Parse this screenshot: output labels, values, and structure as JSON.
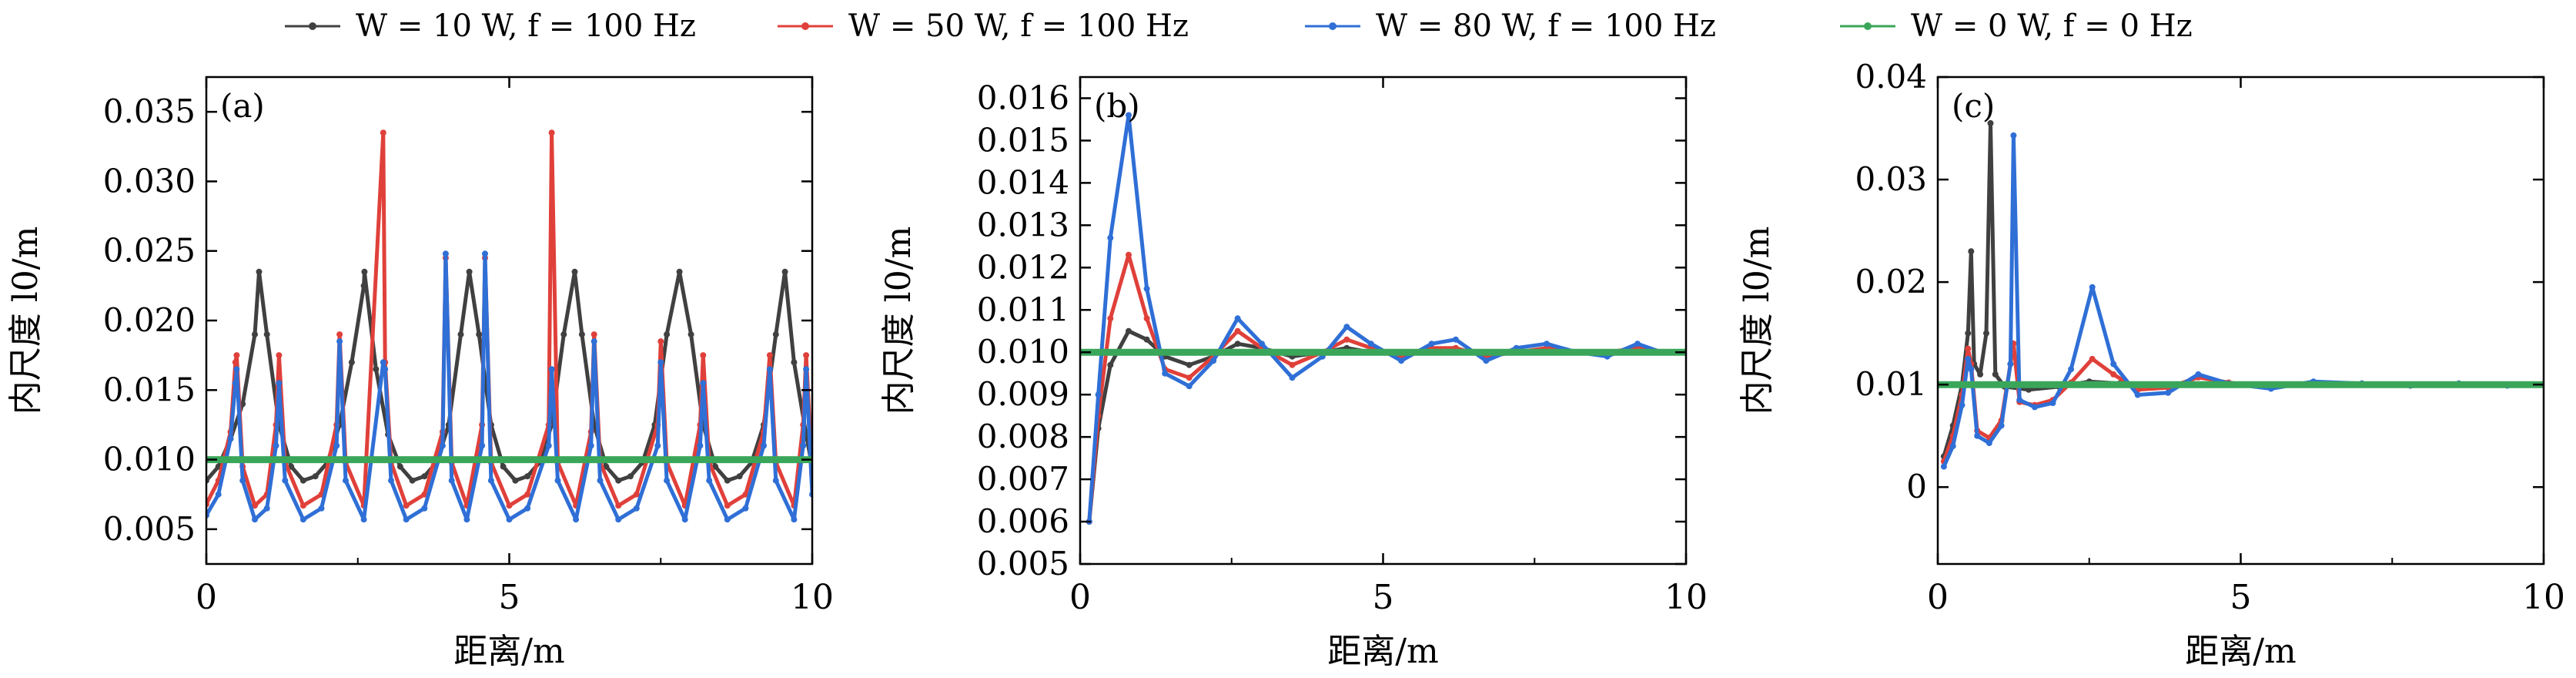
{
  "legend": {
    "placement": "top-center",
    "entries": [
      {
        "label": "W = 10 W, f = 100 Hz",
        "color": "#404040"
      },
      {
        "label": "W = 50 W, f = 100 Hz",
        "color": "#e0403a"
      },
      {
        "label": "W = 80 W, f = 100 Hz",
        "color": "#2f6fd6"
      },
      {
        "label": "W = 0 W, f = 0 Hz",
        "color": "#3aa65a"
      }
    ]
  },
  "chart_data": [
    {
      "type": "line",
      "panel_label": "(a)",
      "xlabel": "距离/m",
      "ylabel": "内尺度 l0/m",
      "xlim": [
        0,
        10
      ],
      "ylim": [
        0.0025,
        0.0375
      ],
      "xticks": [
        "0",
        "5",
        "10"
      ],
      "yticks": [
        "0.005",
        "0.010",
        "0.015",
        "0.020",
        "0.025",
        "0.030",
        "0.035"
      ],
      "grid": false,
      "series": [
        {
          "name": "W = 10 W, f = 100 Hz",
          "color": "#404040",
          "x": [
            0,
            0.2,
            0.4,
            0.6,
            0.8,
            0.87,
            1.0,
            1.2,
            1.4,
            1.6,
            1.8,
            2.0,
            2.2,
            2.4,
            2.6,
            2.61,
            2.8,
            3.0,
            3.2,
            3.4,
            3.6,
            3.8,
            4.0,
            4.2,
            4.34,
            4.5,
            4.7,
            4.9,
            5.1,
            5.3,
            5.5,
            5.7,
            5.9,
            6.08,
            6.2,
            6.4,
            6.6,
            6.8,
            7.0,
            7.2,
            7.4,
            7.6,
            7.81,
            8.0,
            8.2,
            8.4,
            8.6,
            8.8,
            9.0,
            9.2,
            9.4,
            9.55,
            9.7,
            9.9,
            10.0
          ],
          "y": [
            0.0085,
            0.0095,
            0.0115,
            0.014,
            0.019,
            0.0235,
            0.019,
            0.0125,
            0.0095,
            0.0085,
            0.0088,
            0.0098,
            0.0125,
            0.017,
            0.0225,
            0.0235,
            0.0165,
            0.0118,
            0.0095,
            0.0085,
            0.0088,
            0.0098,
            0.0125,
            0.019,
            0.0235,
            0.019,
            0.0125,
            0.0095,
            0.0085,
            0.0088,
            0.0098,
            0.0125,
            0.019,
            0.0235,
            0.019,
            0.0125,
            0.0095,
            0.0085,
            0.0088,
            0.0098,
            0.0125,
            0.019,
            0.0235,
            0.019,
            0.0125,
            0.0095,
            0.0085,
            0.0088,
            0.0098,
            0.0125,
            0.019,
            0.0235,
            0.017,
            0.0118,
            0.0095
          ]
        },
        {
          "name": "W = 50 W, f = 100 Hz",
          "color": "#e0403a",
          "x": [
            0,
            0.2,
            0.4,
            0.48,
            0.5,
            0.6,
            0.8,
            1.0,
            1.15,
            1.2,
            1.3,
            1.6,
            1.9,
            2.15,
            2.2,
            2.3,
            2.6,
            2.92,
            2.95,
            3.05,
            3.3,
            3.6,
            3.9,
            3.95,
            4.05,
            4.3,
            4.55,
            4.6,
            4.7,
            5.0,
            5.3,
            5.65,
            5.7,
            5.8,
            6.1,
            6.35,
            6.4,
            6.5,
            6.8,
            7.1,
            7.45,
            7.5,
            7.6,
            7.9,
            8.15,
            8.2,
            8.3,
            8.6,
            8.9,
            9.2,
            9.3,
            9.4,
            9.7,
            9.85,
            9.9,
            10.0
          ],
          "y": [
            0.0068,
            0.0085,
            0.012,
            0.017,
            0.0175,
            0.0095,
            0.0067,
            0.0075,
            0.0125,
            0.0175,
            0.0098,
            0.0067,
            0.0075,
            0.0125,
            0.019,
            0.0098,
            0.0067,
            0.0335,
            0.017,
            0.0098,
            0.0067,
            0.0075,
            0.012,
            0.0245,
            0.0098,
            0.0067,
            0.0125,
            0.0245,
            0.0098,
            0.0067,
            0.0075,
            0.0125,
            0.0335,
            0.0098,
            0.0067,
            0.012,
            0.019,
            0.0098,
            0.0067,
            0.0075,
            0.0125,
            0.0185,
            0.0098,
            0.0067,
            0.0125,
            0.0175,
            0.0098,
            0.0067,
            0.0075,
            0.012,
            0.0175,
            0.0098,
            0.0067,
            0.0125,
            0.0175,
            0.009
          ]
        },
        {
          "name": "W = 80 W, f = 100 Hz",
          "color": "#2f6fd6",
          "x": [
            0,
            0.2,
            0.4,
            0.48,
            0.5,
            0.6,
            0.8,
            1.0,
            1.15,
            1.2,
            1.3,
            1.6,
            1.9,
            2.15,
            2.2,
            2.3,
            2.6,
            2.92,
            2.95,
            3.05,
            3.3,
            3.6,
            3.9,
            3.95,
            4.05,
            4.3,
            4.55,
            4.6,
            4.7,
            5.0,
            5.3,
            5.65,
            5.7,
            5.8,
            6.1,
            6.35,
            6.4,
            6.5,
            6.8,
            7.1,
            7.45,
            7.5,
            7.6,
            7.9,
            8.15,
            8.2,
            8.3,
            8.6,
            8.9,
            9.2,
            9.3,
            9.4,
            9.7,
            9.85,
            9.9,
            10.0
          ],
          "y": [
            0.006,
            0.0075,
            0.0115,
            0.0155,
            0.0165,
            0.0085,
            0.0057,
            0.0065,
            0.011,
            0.0155,
            0.0085,
            0.0057,
            0.0065,
            0.011,
            0.0185,
            0.0085,
            0.0057,
            0.017,
            0.0165,
            0.0085,
            0.0057,
            0.0065,
            0.011,
            0.0248,
            0.0085,
            0.0057,
            0.011,
            0.0248,
            0.0085,
            0.0057,
            0.0065,
            0.011,
            0.0165,
            0.0085,
            0.0057,
            0.011,
            0.0185,
            0.0085,
            0.0057,
            0.0065,
            0.011,
            0.017,
            0.0085,
            0.0057,
            0.011,
            0.0155,
            0.0085,
            0.0057,
            0.0065,
            0.011,
            0.0165,
            0.0085,
            0.0057,
            0.011,
            0.0165,
            0.0075
          ]
        },
        {
          "name": "W = 0 W, f = 0 Hz",
          "color": "#3aa65a",
          "x": [
            0,
            10
          ],
          "y": [
            0.01,
            0.01
          ]
        }
      ]
    },
    {
      "type": "line",
      "panel_label": "(b)",
      "xlabel": "距离/m",
      "ylabel": "内尺度 l0/m",
      "xlim": [
        0,
        10
      ],
      "ylim": [
        0.005,
        0.0165
      ],
      "xticks": [
        "0",
        "5",
        "10"
      ],
      "yticks": [
        "0.005",
        "0.006",
        "0.007",
        "0.008",
        "0.009",
        "0.010",
        "0.011",
        "0.012",
        "0.013",
        "0.014",
        "0.015",
        "0.016"
      ],
      "grid": false,
      "series": [
        {
          "name": "W = 10 W, f = 100 Hz",
          "color": "#404040",
          "x": [
            0.15,
            0.3,
            0.5,
            0.8,
            1.1,
            1.4,
            1.8,
            2.2,
            2.6,
            3.0,
            3.5,
            4.0,
            4.4,
            4.8,
            5.3,
            5.8,
            6.2,
            6.7,
            7.2,
            7.7,
            8.2,
            8.7,
            9.2,
            9.6,
            10.0
          ],
          "y": [
            0.006,
            0.0082,
            0.0097,
            0.0105,
            0.0103,
            0.0099,
            0.0097,
            0.0099,
            0.0102,
            0.0101,
            0.0099,
            0.01,
            0.0101,
            0.01,
            0.01,
            0.01,
            0.01,
            0.01,
            0.01,
            0.01,
            0.01,
            0.01,
            0.01,
            0.01,
            0.01
          ]
        },
        {
          "name": "W = 50 W, f = 100 Hz",
          "color": "#e0403a",
          "x": [
            0.15,
            0.3,
            0.5,
            0.8,
            1.1,
            1.4,
            1.8,
            2.2,
            2.6,
            3.0,
            3.5,
            4.0,
            4.4,
            4.8,
            5.3,
            5.8,
            6.2,
            6.7,
            7.2,
            7.7,
            8.2,
            8.7,
            9.2,
            9.6,
            10.0
          ],
          "y": [
            0.006,
            0.0085,
            0.0108,
            0.0123,
            0.0108,
            0.0096,
            0.0094,
            0.0099,
            0.0105,
            0.0101,
            0.0097,
            0.01,
            0.0103,
            0.0101,
            0.0099,
            0.0101,
            0.0101,
            0.0099,
            0.01,
            0.0101,
            0.01,
            0.01,
            0.0101,
            0.01,
            0.01
          ]
        },
        {
          "name": "W = 80 W, f = 100 Hz",
          "color": "#2f6fd6",
          "x": [
            0.15,
            0.3,
            0.5,
            0.8,
            1.1,
            1.4,
            1.8,
            2.2,
            2.6,
            3.0,
            3.5,
            4.0,
            4.4,
            4.8,
            5.3,
            5.8,
            6.2,
            6.7,
            7.2,
            7.7,
            8.2,
            8.7,
            9.2,
            9.6,
            10.0
          ],
          "y": [
            0.006,
            0.009,
            0.0127,
            0.0156,
            0.0115,
            0.0095,
            0.0092,
            0.0098,
            0.0108,
            0.0102,
            0.0094,
            0.0099,
            0.0106,
            0.0102,
            0.0098,
            0.0102,
            0.0103,
            0.0098,
            0.0101,
            0.0102,
            0.01,
            0.0099,
            0.0102,
            0.01,
            0.01
          ]
        },
        {
          "name": "W = 0 W, f = 0 Hz",
          "color": "#3aa65a",
          "x": [
            0,
            10
          ],
          "y": [
            0.01,
            0.01
          ]
        }
      ]
    },
    {
      "type": "line",
      "panel_label": "(c)",
      "xlabel": "距离/m",
      "ylabel": "内尺度 l0/m",
      "xlim": [
        0,
        10
      ],
      "ylim": [
        -0.0075,
        0.04
      ],
      "xticks": [
        "0",
        "5",
        "10"
      ],
      "yticks": [
        "0",
        "0.01",
        "0.02",
        "0.03",
        "0.04"
      ],
      "grid": false,
      "series": [
        {
          "name": "W = 10 W, f = 100 Hz",
          "color": "#404040",
          "x": [
            0.1,
            0.25,
            0.4,
            0.5,
            0.55,
            0.6,
            0.7,
            0.8,
            0.87,
            0.95,
            1.1,
            1.5,
            2.0,
            2.5,
            3.0,
            4.0,
            5.0,
            6.0,
            7.0,
            8.0,
            9.0,
            10.0
          ],
          "y": [
            0.003,
            0.006,
            0.01,
            0.015,
            0.023,
            0.012,
            0.011,
            0.015,
            0.0355,
            0.011,
            0.0098,
            0.0095,
            0.0098,
            0.0103,
            0.0101,
            0.01,
            0.01,
            0.01,
            0.01,
            0.01,
            0.01,
            0.01
          ]
        },
        {
          "name": "W = 50 W, f = 100 Hz",
          "color": "#e0403a",
          "x": [
            0.1,
            0.25,
            0.4,
            0.5,
            0.55,
            0.65,
            0.85,
            1.05,
            1.2,
            1.25,
            1.35,
            1.6,
            1.9,
            2.2,
            2.55,
            2.9,
            3.3,
            3.8,
            4.3,
            4.8,
            5.5,
            6.2,
            7.0,
            7.8,
            8.6,
            9.4,
            10.0
          ],
          "y": [
            0.0025,
            0.005,
            0.009,
            0.0135,
            0.012,
            0.0055,
            0.0048,
            0.0065,
            0.012,
            0.014,
            0.0083,
            0.008,
            0.0085,
            0.0102,
            0.0125,
            0.011,
            0.0095,
            0.0097,
            0.0107,
            0.0102,
            0.0097,
            0.0102,
            0.0101,
            0.0099,
            0.0101,
            0.01,
            0.01
          ]
        },
        {
          "name": "W = 80 W, f = 100 Hz",
          "color": "#2f6fd6",
          "x": [
            0.1,
            0.25,
            0.4,
            0.5,
            0.55,
            0.65,
            0.85,
            1.05,
            1.2,
            1.25,
            1.35,
            1.6,
            1.9,
            2.2,
            2.55,
            2.9,
            3.3,
            3.8,
            4.3,
            4.8,
            5.5,
            6.2,
            7.0,
            7.8,
            8.6,
            9.4,
            10.0
          ],
          "y": [
            0.002,
            0.004,
            0.008,
            0.0125,
            0.0115,
            0.005,
            0.0043,
            0.006,
            0.012,
            0.0343,
            0.0085,
            0.0078,
            0.0082,
            0.0115,
            0.0195,
            0.012,
            0.009,
            0.0092,
            0.011,
            0.0101,
            0.0096,
            0.0103,
            0.0101,
            0.0099,
            0.0101,
            0.0099,
            0.01
          ]
        },
        {
          "name": "W = 0 W, f = 0 Hz",
          "color": "#3aa65a",
          "x": [
            0,
            10
          ],
          "y": [
            0.01,
            0.01
          ]
        }
      ]
    }
  ]
}
